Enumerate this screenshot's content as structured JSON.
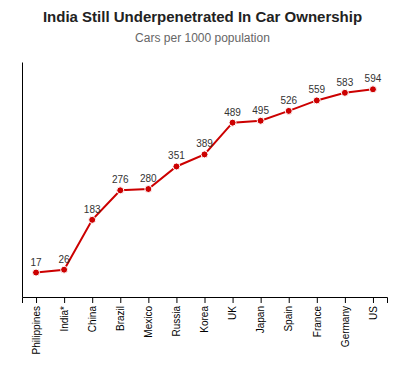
{
  "chart_data": {
    "type": "line",
    "title": "India Still Underpenetrated In Car Ownership",
    "subtitle": "Cars per 1000 population",
    "categories": [
      "Philippines",
      "India*",
      "China",
      "Brazil",
      "Mexico",
      "Russia",
      "Korea",
      "UK",
      "Japan",
      "Spain",
      "France",
      "Germany",
      "US"
    ],
    "values": [
      17,
      26,
      183,
      276,
      280,
      351,
      389,
      489,
      495,
      526,
      559,
      583,
      594
    ],
    "color": "#cc0000",
    "marker": "circle",
    "ylim": [
      -60,
      680
    ],
    "data_labels": true,
    "tick_labels": "x"
  }
}
